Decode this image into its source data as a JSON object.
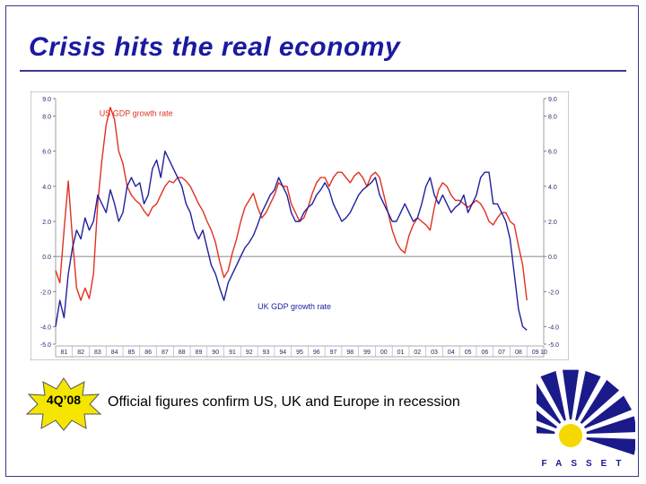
{
  "slide": {
    "title": "Crisis hits the real economy"
  },
  "badge": {
    "label": "4Q’08",
    "fill": "#f5e600"
  },
  "caption": {
    "text": "Official figures confirm US, UK and Europe in recession"
  },
  "logo": {
    "text": "FASSET",
    "primary": "#1a1a8a",
    "accent": "#f5d800"
  },
  "chart_data": {
    "type": "line",
    "x_labels": [
      "81",
      "82",
      "83",
      "84",
      "85",
      "86",
      "87",
      "88",
      "89",
      "90",
      "91",
      "92",
      "93",
      "94",
      "95",
      "96",
      "97",
      "98",
      "99",
      "00",
      "01",
      "02",
      "03",
      "04",
      "05",
      "06",
      "07",
      "08",
      "09",
      "10"
    ],
    "x_start": 1981.0,
    "x_end": 2010.0,
    "ylim": [
      -5.0,
      9.0
    ],
    "y_ticks_left": [
      "9.0",
      "8.0",
      "6.0",
      "4.0",
      "2.0",
      "0.0",
      "-2.0",
      "-4.0",
      "-5.0"
    ],
    "y_ticks_right": [
      "9.0",
      "8.0",
      "6.0",
      "4.0",
      "2.0",
      "0.0",
      "-2.0",
      "-4.0",
      "-5.0"
    ],
    "y_tick_values": [
      9,
      8,
      6,
      4,
      2,
      0,
      -2,
      -4,
      -5
    ],
    "series": [
      {
        "name": "US GDP growth rate",
        "color": "#e03020",
        "x": [
          1981.0,
          1981.25,
          1981.5,
          1981.75,
          1982.0,
          1982.25,
          1982.5,
          1982.75,
          1983.0,
          1983.25,
          1983.5,
          1983.75,
          1984.0,
          1984.25,
          1984.5,
          1984.75,
          1985.0,
          1985.25,
          1985.5,
          1985.75,
          1986.0,
          1986.25,
          1986.5,
          1986.75,
          1987.0,
          1987.25,
          1987.5,
          1987.75,
          1988.0,
          1988.25,
          1988.5,
          1988.75,
          1989.0,
          1989.25,
          1989.5,
          1989.75,
          1990.0,
          1990.25,
          1990.5,
          1990.75,
          1991.0,
          1991.25,
          1991.5,
          1991.75,
          1992.0,
          1992.25,
          1992.5,
          1992.75,
          1993.0,
          1993.25,
          1993.5,
          1993.75,
          1994.0,
          1994.25,
          1994.5,
          1994.75,
          1995.0,
          1995.25,
          1995.5,
          1995.75,
          1996.0,
          1996.25,
          1996.5,
          1996.75,
          1997.0,
          1997.25,
          1997.5,
          1997.75,
          1998.0,
          1998.25,
          1998.5,
          1998.75,
          1999.0,
          1999.25,
          1999.5,
          1999.75,
          2000.0,
          2000.25,
          2000.5,
          2000.75,
          2001.0,
          2001.25,
          2001.5,
          2001.75,
          2002.0,
          2002.25,
          2002.5,
          2002.75,
          2003.0,
          2003.25,
          2003.5,
          2003.75,
          2004.0,
          2004.25,
          2004.5,
          2004.75,
          2005.0,
          2005.25,
          2005.5,
          2005.75,
          2006.0,
          2006.25,
          2006.5,
          2006.75,
          2007.0,
          2007.25,
          2007.5,
          2007.75,
          2008.0,
          2008.25,
          2008.5,
          2008.75,
          2009.0
        ],
        "y": [
          -0.8,
          -1.5,
          1.5,
          4.3,
          1.0,
          -1.8,
          -2.5,
          -1.8,
          -2.4,
          -1.0,
          3.0,
          5.5,
          7.5,
          8.5,
          7.8,
          6.0,
          5.3,
          4.0,
          3.5,
          3.2,
          3.0,
          2.6,
          2.3,
          2.8,
          3.0,
          3.5,
          4.0,
          4.3,
          4.2,
          4.5,
          4.5,
          4.3,
          4.0,
          3.5,
          3.0,
          2.6,
          2.0,
          1.5,
          0.8,
          -0.3,
          -1.2,
          -0.8,
          0.2,
          1.0,
          2.0,
          2.8,
          3.2,
          3.6,
          2.8,
          2.2,
          2.5,
          3.0,
          3.5,
          4.2,
          4.0,
          4.0,
          3.0,
          2.5,
          2.0,
          2.2,
          2.8,
          3.6,
          4.2,
          4.5,
          4.5,
          4.0,
          4.5,
          4.8,
          4.8,
          4.5,
          4.2,
          4.6,
          4.8,
          4.5,
          4.0,
          4.6,
          4.8,
          4.5,
          3.5,
          2.5,
          1.5,
          0.8,
          0.4,
          0.2,
          1.2,
          1.8,
          2.2,
          2.0,
          1.8,
          1.5,
          2.8,
          3.8,
          4.2,
          4.0,
          3.5,
          3.2,
          3.2,
          3.0,
          2.8,
          3.0,
          3.2,
          3.0,
          2.6,
          2.0,
          1.8,
          2.2,
          2.5,
          2.5,
          2.0,
          1.8,
          0.6,
          -0.5,
          -2.5
        ]
      },
      {
        "name": "UK GDP growth rate",
        "color": "#2020a0",
        "x": [
          1981.0,
          1981.25,
          1981.5,
          1981.75,
          1982.0,
          1982.25,
          1982.5,
          1982.75,
          1983.0,
          1983.25,
          1983.5,
          1983.75,
          1984.0,
          1984.25,
          1984.5,
          1984.75,
          1985.0,
          1985.25,
          1985.5,
          1985.75,
          1986.0,
          1986.25,
          1986.5,
          1986.75,
          1987.0,
          1987.25,
          1987.5,
          1987.75,
          1988.0,
          1988.25,
          1988.5,
          1988.75,
          1989.0,
          1989.25,
          1989.5,
          1989.75,
          1990.0,
          1990.25,
          1990.5,
          1990.75,
          1991.0,
          1991.25,
          1991.5,
          1991.75,
          1992.0,
          1992.25,
          1992.5,
          1992.75,
          1993.0,
          1993.25,
          1993.5,
          1993.75,
          1994.0,
          1994.25,
          1994.5,
          1994.75,
          1995.0,
          1995.25,
          1995.5,
          1995.75,
          1996.0,
          1996.25,
          1996.5,
          1996.75,
          1997.0,
          1997.25,
          1997.5,
          1997.75,
          1998.0,
          1998.25,
          1998.5,
          1998.75,
          1999.0,
          1999.25,
          1999.5,
          1999.75,
          2000.0,
          2000.25,
          2000.5,
          2000.75,
          2001.0,
          2001.25,
          2001.5,
          2001.75,
          2002.0,
          2002.25,
          2002.5,
          2002.75,
          2003.0,
          2003.25,
          2003.5,
          2003.75,
          2004.0,
          2004.25,
          2004.5,
          2004.75,
          2005.0,
          2005.25,
          2005.5,
          2005.75,
          2006.0,
          2006.25,
          2006.5,
          2006.75,
          2007.0,
          2007.25,
          2007.5,
          2007.75,
          2008.0,
          2008.25,
          2008.5,
          2008.75,
          2009.0
        ],
        "y": [
          -4.0,
          -2.5,
          -3.5,
          -1.0,
          0.5,
          1.5,
          1.0,
          2.2,
          1.5,
          2.0,
          3.5,
          3.0,
          2.5,
          3.8,
          3.0,
          2.0,
          2.5,
          4.0,
          4.5,
          4.0,
          4.2,
          3.0,
          3.5,
          5.0,
          5.5,
          4.5,
          6.0,
          5.5,
          5.0,
          4.5,
          4.0,
          3.0,
          2.5,
          1.5,
          1.0,
          1.5,
          0.5,
          -0.5,
          -1.0,
          -1.8,
          -2.5,
          -1.5,
          -1.0,
          -0.5,
          0.0,
          0.5,
          0.8,
          1.2,
          1.8,
          2.5,
          3.0,
          3.5,
          3.8,
          4.5,
          4.0,
          3.5,
          2.5,
          2.0,
          2.0,
          2.5,
          2.8,
          3.0,
          3.5,
          3.8,
          4.2,
          3.8,
          3.0,
          2.5,
          2.0,
          2.2,
          2.5,
          3.0,
          3.5,
          3.8,
          4.0,
          4.2,
          4.5,
          3.5,
          3.0,
          2.5,
          2.0,
          2.0,
          2.5,
          3.0,
          2.5,
          2.0,
          2.2,
          3.0,
          4.0,
          4.5,
          3.5,
          3.0,
          3.5,
          3.0,
          2.5,
          2.8,
          3.0,
          3.5,
          2.5,
          3.0,
          3.5,
          4.5,
          4.8,
          4.8,
          3.0,
          3.0,
          2.5,
          2.0,
          1.0,
          -1.0,
          -3.0,
          -4.0,
          -4.2
        ]
      }
    ],
    "labels": {
      "us": "US GDP growth rate",
      "uk": "UK GDP growth rate"
    },
    "grid": false,
    "zero_line": true
  }
}
